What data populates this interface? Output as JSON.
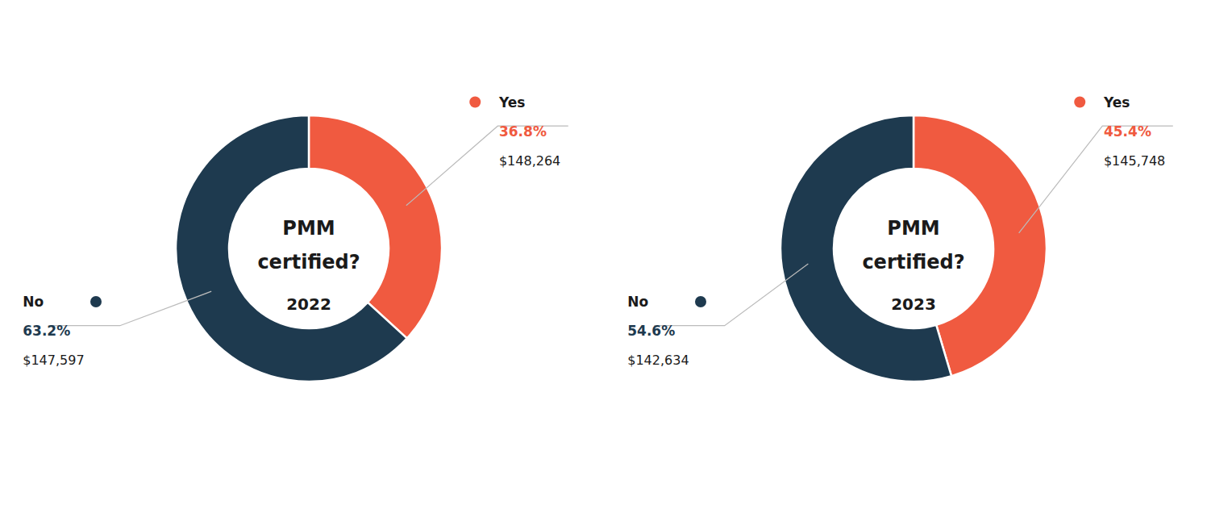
{
  "chart_data": [
    {
      "type": "pie",
      "title": "PMM certified?",
      "subtitle": "2022",
      "categories": [
        "Yes",
        "No"
      ],
      "values": [
        36.8,
        63.2
      ],
      "value_labels": [
        "36.8%",
        "63.2%"
      ],
      "data_labels": true,
      "colors": [
        "#F05A40",
        "#1E3A4F"
      ],
      "annotations": [
        "$148,264",
        "$147,597"
      ]
    },
    {
      "type": "pie",
      "title": "PMM certified?",
      "subtitle": "2023",
      "categories": [
        "Yes",
        "No"
      ],
      "values": [
        45.4,
        54.6
      ],
      "value_labels": [
        "45.4%",
        "54.6%"
      ],
      "data_labels": true,
      "colors": [
        "#F05A40",
        "#1E3A4F"
      ],
      "annotations": [
        "$145,748",
        "$142,634"
      ]
    }
  ]
}
